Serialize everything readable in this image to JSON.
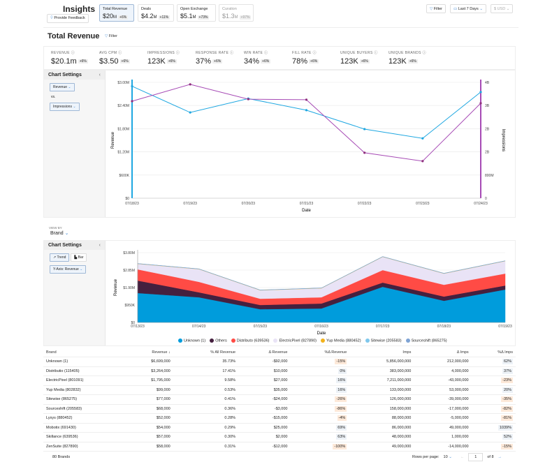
{
  "header": {
    "title": "Insights",
    "feedback": "Provide Feedback",
    "tabs": [
      {
        "label": "Total Revenue",
        "value": "$20",
        "unit": "M",
        "change": "+6%"
      },
      {
        "label": "Deals",
        "value": "$4.2",
        "unit": "M",
        "change": "+11%"
      },
      {
        "label": "Open Exchange",
        "value": "$5.1",
        "unit": "M",
        "change": "+73%"
      },
      {
        "label": "Curation",
        "value": "$1.3",
        "unit": "M",
        "change": "+97%"
      }
    ],
    "filter": "Filter",
    "date_range": "Last 7 Days",
    "currency": "$ USD"
  },
  "section": {
    "title": "Total Revenue",
    "filter": "Filter"
  },
  "kpis": [
    {
      "label": "REVENUE",
      "value": "$20.1m",
      "change": "+6%"
    },
    {
      "label": "AVG CPM",
      "value": "$3.50",
      "change": "+6%"
    },
    {
      "label": "IMPRESSIONS",
      "value": "123K",
      "change": "+6%"
    },
    {
      "label": "RESPONSE RATE",
      "value": "37%",
      "change": "+6%"
    },
    {
      "label": "WIN RATE",
      "value": "34%",
      "change": "+6%"
    },
    {
      "label": "FILL RATE",
      "value": "78%",
      "change": "+6%"
    },
    {
      "label": "UNIQUE BUYERS",
      "value": "123K",
      "change": "+6%"
    },
    {
      "label": "UNIQUE BRANDS",
      "value": "123K",
      "change": "+6%"
    }
  ],
  "settings1": {
    "title": "Chart Settings",
    "metric1": "Revenue",
    "vs": "vs.",
    "metric2": "Impressions"
  },
  "settings2": {
    "view_by_label": "VIEW BY",
    "view_by": "Brand",
    "title": "Chart Settings",
    "trend": "Trend",
    "bar": "Bar",
    "yaxis": "Y-Axis: Revenue"
  },
  "chart_data": [
    {
      "type": "line",
      "xlabel": "Date",
      "ylabel": "Revenue",
      "y2label": "Impressions",
      "categories": [
        "07/18/23",
        "07/19/23",
        "07/20/23",
        "07/21/23",
        "07/22/23",
        "07/23/23",
        "07/24/23"
      ],
      "yticks": [
        "$0",
        "$600K",
        "$1.20M",
        "$1.80M",
        "$2.40M",
        "$3.00M"
      ],
      "ylim": [
        0,
        3000000
      ],
      "y2ticks": [
        "0",
        "800M",
        "2B",
        "2B",
        "3B",
        "4B"
      ],
      "y2lim": [
        0,
        4000000000
      ],
      "series": [
        {
          "name": "Revenue",
          "axis": "left",
          "color": "#1ea7e1",
          "values": [
            2900000,
            2220000,
            2580000,
            2280000,
            1790000,
            1550000,
            2750000
          ]
        },
        {
          "name": "Impressions",
          "axis": "right",
          "color": "#a64ab5",
          "values": [
            3350000000,
            3930000000,
            3420000000,
            3400000000,
            1570000000,
            1280000000,
            3280000000
          ]
        }
      ],
      "grid": true
    },
    {
      "type": "area",
      "stacked": true,
      "xlabel": "Date",
      "ylabel": "Revenue",
      "categories": [
        "07/13/23",
        "07/14/23",
        "07/15/23",
        "07/16/23",
        "07/17/23",
        "07/18/23",
        "07/19/23"
      ],
      "yticks": [
        "$0",
        "$950K",
        "$1.90M",
        "$2.85M",
        "$3.80M"
      ],
      "ylim": [
        0,
        3800000
      ],
      "series": [
        {
          "name": "Unknown (1)",
          "color": "#009cdc",
          "values": [
            1600000,
            1370000,
            720000,
            760000,
            1940000,
            1180000,
            1790000
          ]
        },
        {
          "name": "Others",
          "color": "#45203f",
          "values": [
            680000,
            270000,
            230000,
            270000,
            230000,
            230000,
            220000
          ]
        },
        {
          "name": "Distributo (639536)",
          "color": "#ff4b45",
          "values": [
            610000,
            570000,
            340000,
            340000,
            680000,
            640000,
            650000
          ]
        },
        {
          "name": "ElectricPixel (827890)",
          "color": "#e9e3f6",
          "values": [
            300000,
            690000,
            460000,
            490000,
            720000,
            610000,
            680000
          ]
        },
        {
          "name": "Yup Media (880452)",
          "color": "#f2b21c",
          "values": [
            10000,
            10000,
            10000,
            10000,
            10000,
            10000,
            10000
          ]
        },
        {
          "name": "Sitewise (205583)",
          "color": "#7fc7ec",
          "values": [
            5000,
            5000,
            5000,
            5000,
            5000,
            5000,
            5000
          ]
        },
        {
          "name": "Sourceshift (865275)",
          "color": "#7ea3d4",
          "values": [
            5000,
            5000,
            5000,
            5000,
            5000,
            5000,
            5000
          ]
        }
      ],
      "grid": true
    }
  ],
  "table": {
    "columns": [
      "Brand",
      "Revenue",
      "% All Revenue",
      "Δ Revenue",
      "%Δ Revenue",
      "Imps",
      "Δ Imps",
      "%Δ Imps"
    ],
    "rows": [
      [
        "Unknown (1)",
        "$6,699,000",
        "35.73%",
        "-$92,000",
        "-15%",
        "5,856,000,000",
        "212,000,000",
        "62%"
      ],
      [
        "Distributio (115405)",
        "$3,264,000",
        "17.41%",
        "$10,000",
        "0%",
        "383,000,000",
        "4,000,000",
        "37%"
      ],
      [
        "ElectricPixel (801091)",
        "$1,795,000",
        "9.58%",
        "$27,000",
        "16%",
        "7,211,000,000",
        "-43,000,000",
        "-23%"
      ],
      [
        "Yup Media (802832)",
        "$99,000",
        "0.53%",
        "$35,000",
        "16%",
        "133,000,000",
        "53,000,000",
        "20%"
      ],
      [
        "Sitewise (865275)",
        "$77,000",
        "0.41%",
        "-$24,000",
        "-26%",
        "126,000,000",
        "-39,000,000",
        "-35%"
      ],
      [
        "Sourceshift (205583)",
        "$68,000",
        "0.36%",
        "-$3,000",
        "-86%",
        "158,000,000",
        "-17,000,000",
        "-82%"
      ],
      [
        "Lysys (880452)",
        "$52,000",
        "0.28%",
        "-$15,000",
        "-4%",
        "88,000,000",
        "-5,000,000",
        "-81%"
      ],
      [
        "Mobotix (691430)",
        "$54,000",
        "0.29%",
        "$25,000",
        "69%",
        "86,000,000",
        "49,000,000",
        "1039%"
      ],
      [
        "Skillance (639536)",
        "$57,000",
        "0.30%",
        "$2,000",
        "63%",
        "48,000,000",
        "1,000,000",
        "52%"
      ],
      [
        "ZenSuite (827890)",
        "$58,000",
        "0.31%",
        "-$12,000",
        "-100%",
        "49,000,000",
        "-14,000,000",
        "-15%"
      ]
    ],
    "count": "80 Brands",
    "rows_per_page_label": "Rows per page:",
    "rows_per_page": "10",
    "page": "1",
    "of_pages": "of 8"
  }
}
